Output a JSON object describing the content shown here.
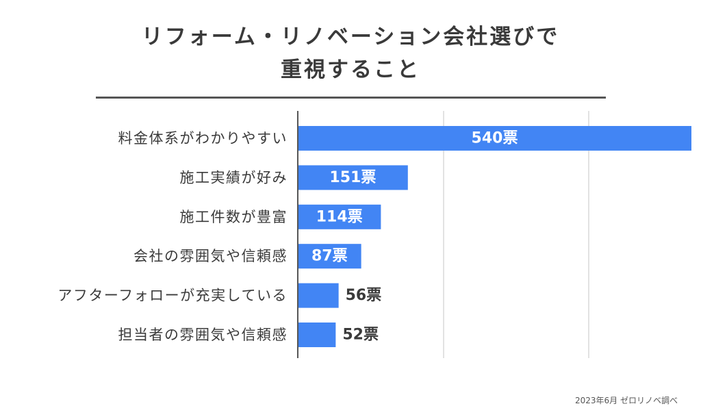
{
  "chart_data": {
    "type": "bar",
    "orientation": "horizontal",
    "title_lines": [
      "リフォーム・リノベーション会社選びで",
      "重視すること"
    ],
    "categories": [
      "料金体系がわかりやすい",
      "施工実績が好み",
      "施工件数が豊富",
      "会社の雰囲気や信頼感",
      "アフターフォローが充実している",
      "担当者の雰囲気や信頼感"
    ],
    "values": [
      540,
      151,
      114,
      87,
      56,
      52
    ],
    "value_labels": [
      "540票",
      "151票",
      "114票",
      "87票",
      "56票",
      "52票"
    ],
    "xlim": [
      0,
      540
    ],
    "grid": true,
    "bar_color": "#4285f4"
  },
  "footnote": "2023年6月 ゼロリノベ調べ"
}
